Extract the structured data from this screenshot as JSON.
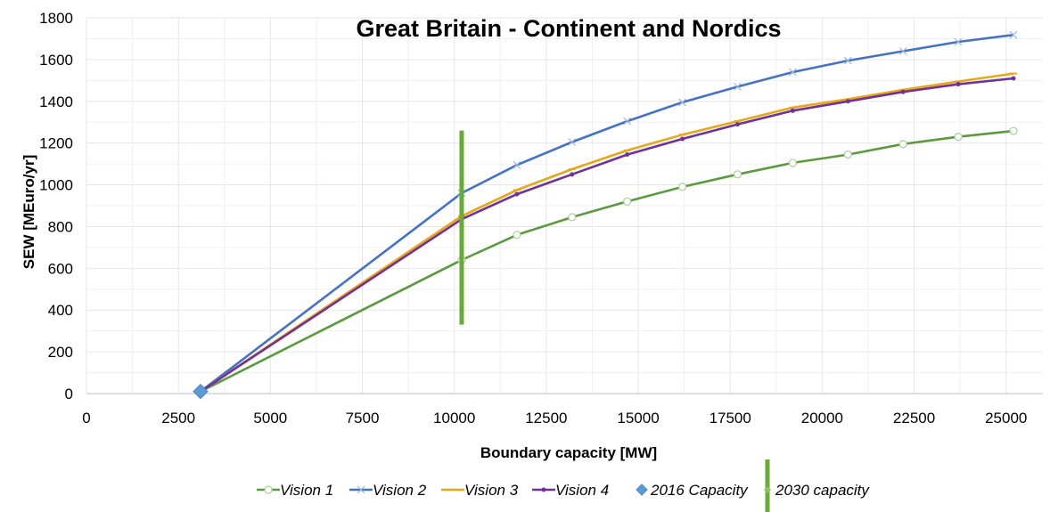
{
  "chart_data": {
    "type": "line",
    "title": "Great Britain - Continent and Nordics",
    "xlabel": "Boundary capacity [MW]",
    "ylabel": "SEW [MEuro/yr]",
    "xlim": [
      0,
      26000
    ],
    "ylim": [
      0,
      1800
    ],
    "x_ticks": [
      0,
      2500,
      5000,
      7500,
      10000,
      12500,
      15000,
      17500,
      20000,
      22500,
      25000
    ],
    "y_ticks": [
      0,
      200,
      400,
      600,
      800,
      1000,
      1200,
      1400,
      1600,
      1800
    ],
    "grid": true,
    "legend_position": "bottom",
    "series": [
      {
        "name": "Vision 1",
        "color": "#5b9a3f",
        "marker": "circle-open",
        "points": [
          [
            3100,
            10
          ],
          [
            10200,
            640
          ],
          [
            11700,
            760
          ],
          [
            13200,
            845
          ],
          [
            14700,
            920
          ],
          [
            16200,
            990
          ],
          [
            17700,
            1050
          ],
          [
            19200,
            1105
          ],
          [
            20700,
            1145
          ],
          [
            22200,
            1195
          ],
          [
            23700,
            1230
          ],
          [
            25200,
            1258
          ]
        ]
      },
      {
        "name": "Vision 2",
        "color": "#4472c4",
        "marker": "x",
        "points": [
          [
            3100,
            10
          ],
          [
            10200,
            960
          ],
          [
            11700,
            1095
          ],
          [
            13200,
            1205
          ],
          [
            14700,
            1305
          ],
          [
            16200,
            1395
          ],
          [
            17700,
            1470
          ],
          [
            19200,
            1540
          ],
          [
            20700,
            1595
          ],
          [
            22200,
            1640
          ],
          [
            23700,
            1685
          ],
          [
            25200,
            1718
          ]
        ]
      },
      {
        "name": "Vision 3",
        "color": "#e6a817",
        "marker": "dash",
        "points": [
          [
            3100,
            10
          ],
          [
            10200,
            850
          ],
          [
            11700,
            975
          ],
          [
            13200,
            1075
          ],
          [
            14700,
            1165
          ],
          [
            16200,
            1240
          ],
          [
            17700,
            1305
          ],
          [
            19200,
            1370
          ],
          [
            20700,
            1410
          ],
          [
            22200,
            1455
          ],
          [
            23700,
            1495
          ],
          [
            25200,
            1533
          ]
        ]
      },
      {
        "name": "Vision 4",
        "color": "#7030a0",
        "marker": "dot",
        "points": [
          [
            3100,
            10
          ],
          [
            10200,
            835
          ],
          [
            11700,
            955
          ],
          [
            13200,
            1050
          ],
          [
            14700,
            1145
          ],
          [
            16200,
            1220
          ],
          [
            17700,
            1290
          ],
          [
            19200,
            1355
          ],
          [
            20700,
            1400
          ],
          [
            22200,
            1445
          ],
          [
            23700,
            1482
          ],
          [
            25200,
            1510
          ]
        ]
      }
    ],
    "markers": [
      {
        "name": "2016 Capacity",
        "type": "point",
        "marker": "diamond",
        "color": "#5b9bd5",
        "x": 3100,
        "y": 10
      },
      {
        "name": "2030 capacity",
        "type": "vertical-bar",
        "marker": "bar",
        "color": "#6aaa3a",
        "x": 10200,
        "y_range": [
          330,
          1260
        ]
      }
    ]
  }
}
